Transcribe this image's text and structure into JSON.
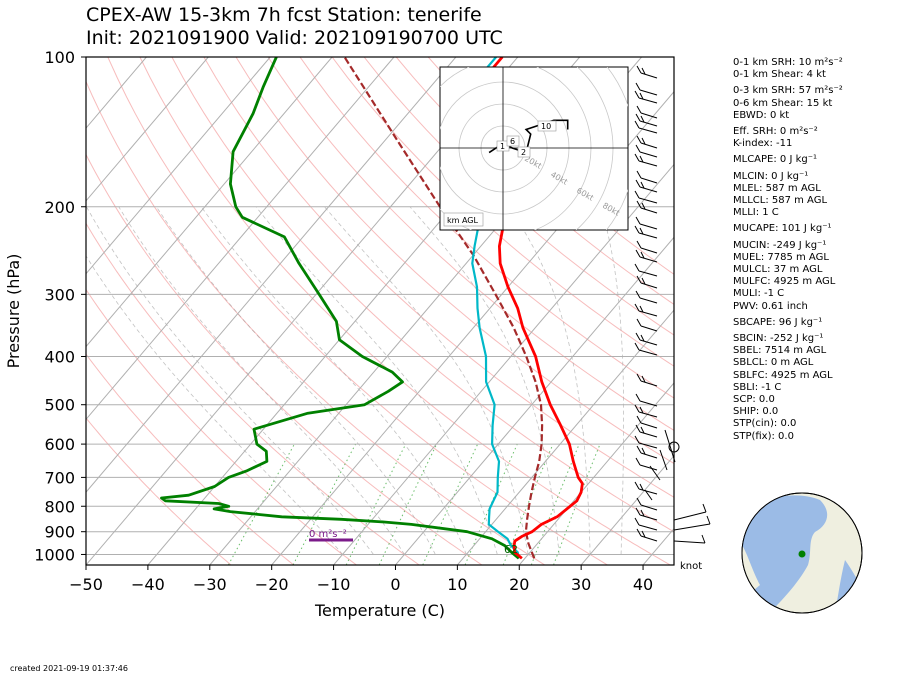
{
  "title": {
    "line1": "CPEX-AW 15-3km  7h fcst  Station: tenerife",
    "line2": "Init: 2021091900  Valid: 202109190700 UTC"
  },
  "created": "created 2021-09-19 01:37:46",
  "hodograph": {
    "badge": "km AGL",
    "ring_labels": [
      "20kt",
      "40kt",
      "60kt",
      "80kt"
    ],
    "height_labels": [
      "1",
      "6",
      "2",
      "10"
    ],
    "points": [
      [
        -3,
        -1
      ],
      [
        0,
        1
      ],
      [
        2,
        0
      ],
      [
        5,
        -1
      ],
      [
        6,
        3
      ],
      [
        5,
        4
      ],
      [
        8,
        5
      ],
      [
        11,
        6
      ],
      [
        14,
        6
      ],
      [
        14,
        4
      ]
    ]
  },
  "srh_marker": {
    "label": "0 m²s⁻²",
    "color": "#7b1a8a"
  },
  "parcel_label": "62",
  "barb_unit_label": "knot",
  "stats": [
    "0-1 km SRH: 10 m²s⁻²",
    "0-1 km Shear: 4 kt",
    "",
    "0-3 km SRH: 57 m²s⁻²",
    "0-6 km Shear: 15 kt",
    "EBWD: 0 kt",
    "",
    "Eff. SRH: 0 m²s⁻²",
    "K-index: -11",
    "",
    "MLCAPE: 0 J kg⁻¹",
    "",
    "MLCIN: 0 J kg⁻¹",
    "MLEL: 587 m AGL",
    "MLLCL: 587 m AGL",
    "MLLI: 1 C",
    "",
    "MUCAPE: 101 J kg⁻¹",
    "",
    "MUCIN: -249 J kg⁻¹",
    "MUEL: 7785 m AGL",
    "MULCL: 37 m AGL",
    "MULFC: 4925 m AGL",
    "MULI: -1 C",
    "PWV: 0.61 inch",
    "",
    "SBCAPE: 96 J kg⁻¹",
    "",
    "SBCIN: -252 J kg⁻¹",
    "SBEL: 7514 m AGL",
    "SBLCL: 0 m AGL",
    "SBLFC: 4925 m AGL",
    "SBLI: -1 C",
    "SCP: 0.0",
    "SHIP: 0.0",
    "STP(cin): 0.0",
    "STP(fix): 0.0"
  ],
  "globe": {
    "station_marker_color": "#008000",
    "ocean_color": "#9bbbe6",
    "land_color": "#efefe0"
  },
  "chart_data": {
    "type": "line",
    "title": "CPEX-AW 15-3km  7h fcst  Station: tenerife",
    "subtitle": "Init: 2021091900  Valid: 202109190700 UTC",
    "xlabel": "Temperature (C)",
    "ylabel": "Pressure (hPa)",
    "xlim": [
      -50,
      45
    ],
    "ylim": [
      1050,
      100
    ],
    "y_scale": "log",
    "grid": true,
    "x_ticks": [
      -50,
      -40,
      -30,
      -20,
      -10,
      0,
      10,
      20,
      30,
      40
    ],
    "y_ticks": [
      100,
      200,
      300,
      400,
      500,
      600,
      700,
      800,
      900,
      1000
    ],
    "skew": "skew-T log-p",
    "series": [
      {
        "role": "temperature",
        "color": "#ff0000",
        "points": [
          [
            1018,
            19.5
          ],
          [
            990,
            17.5
          ],
          [
            960,
            16.5
          ],
          [
            940,
            16
          ],
          [
            920,
            16.5
          ],
          [
            900,
            17.5
          ],
          [
            870,
            18
          ],
          [
            840,
            19.5
          ],
          [
            810,
            20
          ],
          [
            780,
            20.5
          ],
          [
            750,
            20
          ],
          [
            720,
            19
          ],
          [
            700,
            17.5
          ],
          [
            650,
            14.5
          ],
          [
            600,
            11.5
          ],
          [
            550,
            7.5
          ],
          [
            500,
            3
          ],
          [
            450,
            -1.5
          ],
          [
            400,
            -6
          ],
          [
            350,
            -12
          ],
          [
            320,
            -15.5
          ],
          [
            290,
            -20
          ],
          [
            260,
            -24.5
          ],
          [
            240,
            -27
          ],
          [
            220,
            -29
          ],
          [
            200,
            -32.5
          ],
          [
            180,
            -36.5
          ],
          [
            160,
            -41
          ],
          [
            140,
            -45.5
          ],
          [
            120,
            -51
          ],
          [
            110,
            -52.5
          ],
          [
            100,
            -52.5
          ]
        ]
      },
      {
        "role": "dewpoint",
        "color": "#00b8c8",
        "points": [
          [
            1018,
            19
          ],
          [
            990,
            18
          ],
          [
            960,
            16
          ],
          [
            930,
            14.5
          ],
          [
            900,
            12
          ],
          [
            870,
            9.5
          ],
          [
            840,
            8.5
          ],
          [
            810,
            7.5
          ],
          [
            780,
            7
          ],
          [
            750,
            6.5
          ],
          [
            700,
            4.5
          ],
          [
            650,
            2.5
          ],
          [
            600,
            -1
          ],
          [
            550,
            -3.5
          ],
          [
            500,
            -6
          ],
          [
            450,
            -10.5
          ],
          [
            400,
            -14
          ],
          [
            350,
            -19
          ],
          [
            320,
            -22
          ],
          [
            290,
            -25
          ],
          [
            260,
            -29
          ],
          [
            240,
            -31
          ],
          [
            220,
            -33
          ],
          [
            200,
            -35.5
          ],
          [
            180,
            -39
          ],
          [
            160,
            -42.5
          ],
          [
            140,
            -46.5
          ],
          [
            120,
            -52
          ],
          [
            110,
            -53.5
          ],
          [
            100,
            -53.5
          ]
        ]
      },
      {
        "role": "dewpoint-mixed",
        "color": "#008000",
        "points": [
          [
            1018,
            19
          ],
          [
            990,
            17
          ],
          [
            960,
            15
          ],
          [
            930,
            12
          ],
          [
            900,
            7
          ],
          [
            870,
            -3
          ],
          [
            860,
            -8
          ],
          [
            850,
            -15
          ],
          [
            840,
            -25
          ],
          [
            820,
            -34
          ],
          [
            810,
            -37
          ],
          [
            800,
            -35
          ],
          [
            790,
            -37
          ],
          [
            780,
            -46
          ],
          [
            770,
            -47
          ],
          [
            760,
            -43
          ],
          [
            730,
            -40
          ],
          [
            700,
            -39
          ],
          [
            680,
            -37
          ],
          [
            650,
            -35
          ],
          [
            620,
            -36.5
          ],
          [
            600,
            -39
          ],
          [
            560,
            -41.5
          ],
          [
            520,
            -35
          ],
          [
            500,
            -27
          ],
          [
            470,
            -25
          ],
          [
            450,
            -24
          ],
          [
            430,
            -27
          ],
          [
            400,
            -34
          ],
          [
            370,
            -40
          ],
          [
            340,
            -43
          ],
          [
            300,
            -49.5
          ],
          [
            260,
            -57
          ],
          [
            230,
            -63
          ],
          [
            210,
            -72.5
          ],
          [
            200,
            -75
          ],
          [
            180,
            -79
          ],
          [
            155,
            -83
          ],
          [
            130,
            -85
          ],
          [
            115,
            -87
          ],
          [
            100,
            -89
          ]
        ]
      },
      {
        "role": "parcel",
        "color": "#a52a2a",
        "dashed": true,
        "points": [
          [
            1018,
            21.5
          ],
          [
            950,
            18.5
          ],
          [
            900,
            16.5
          ],
          [
            850,
            15
          ],
          [
            800,
            13.5
          ],
          [
            750,
            12
          ],
          [
            700,
            10.5
          ],
          [
            650,
            9
          ],
          [
            600,
            7
          ],
          [
            550,
            4.5
          ],
          [
            500,
            1.5
          ],
          [
            450,
            -2.5
          ],
          [
            400,
            -7.5
          ],
          [
            350,
            -13.5
          ],
          [
            300,
            -21
          ],
          [
            250,
            -30
          ],
          [
            200,
            -42
          ],
          [
            150,
            -57
          ],
          [
            100,
            -78
          ]
        ]
      }
    ],
    "annotations": [
      "62",
      "0 m²s⁻²",
      "knot"
    ]
  }
}
